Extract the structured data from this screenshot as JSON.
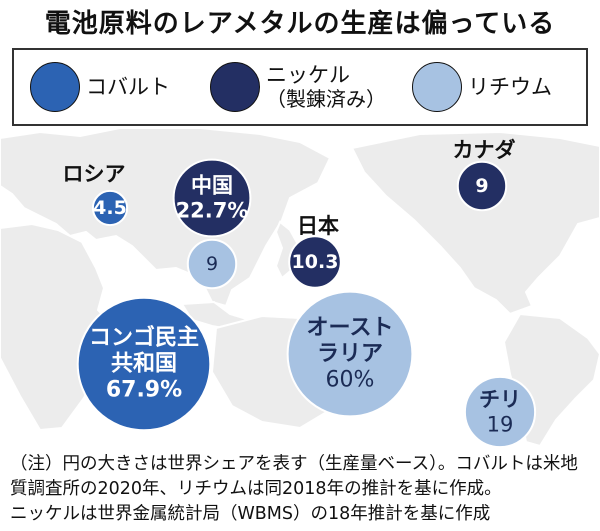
{
  "title": "電池原料のレアメタルの生産は偏っている",
  "colors": {
    "cobalt": "#2c63b3",
    "nickel": "#232f63",
    "lithium": "#a7c2e2",
    "land": "#ececec",
    "ocean": "#ffffff"
  },
  "legend": [
    {
      "key": "cobalt",
      "label": "コバルト",
      "sub": ""
    },
    {
      "key": "nickel",
      "label": "ニッケル",
      "sub": "（製錬済み）"
    },
    {
      "key": "lithium",
      "label": "リチウム",
      "sub": ""
    }
  ],
  "chart_data": {
    "type": "proportional-symbol-map",
    "title": "電池原料のレアメタルの生産は偏っている",
    "unit": "%",
    "series": [
      {
        "name": "コバルト",
        "color_key": "cobalt",
        "points": [
          {
            "label_lines": [
              "ロシア"
            ],
            "value": 4.5
          },
          {
            "label_lines": [
              "コンゴ民主",
              "共和国"
            ],
            "value": 67.9,
            "value_text": "67.9%"
          }
        ]
      },
      {
        "name": "ニッケル（製錬済み）",
        "color_key": "nickel",
        "points": [
          {
            "label_lines": [
              "中国"
            ],
            "value": 22.7,
            "value_text": "22.7%"
          },
          {
            "label_lines": [
              "日本"
            ],
            "value": 10.3
          },
          {
            "label_lines": [
              "カナダ"
            ],
            "value": 9
          }
        ]
      },
      {
        "name": "リチウム",
        "color_key": "lithium",
        "points": [
          {
            "label_lines": [
              "中国"
            ],
            "value": 9,
            "label_shared": true
          },
          {
            "label_lines": [
              "オースト",
              "ラリア"
            ],
            "value": 60,
            "value_text": "60%"
          },
          {
            "label_lines": [
              "チリ"
            ],
            "value": 19
          }
        ]
      }
    ]
  },
  "note": {
    "lines": [
      "（注）円の大きさは世界シェアを表す（生産量ベース）。コバルトは米地",
      "質調査所の2020年、リチウムは同2018年の推計を基に作成。",
      "ニッケルは世界金属統計局（WBMS）の18年推計を基に作成"
    ]
  }
}
